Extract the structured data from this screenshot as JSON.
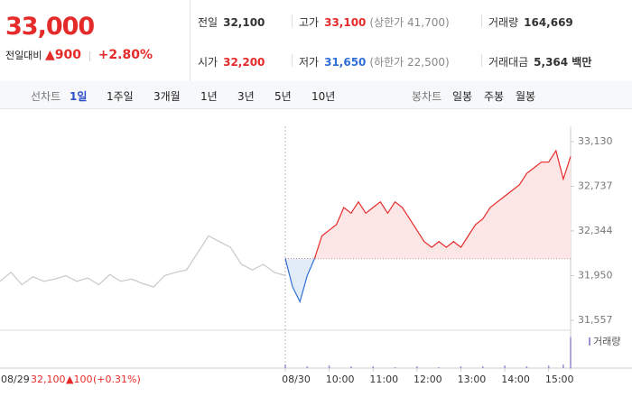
{
  "header": {
    "price": "33,000",
    "change_label": "전일대비",
    "change": "▲900",
    "change_pct": "+2.80%"
  },
  "stats": [
    {
      "label": "전일",
      "value": "32,100"
    },
    {
      "label": "고가",
      "value": "33,100",
      "extra": "(상한가 41,700)"
    },
    {
      "label": "거래량",
      "value": "164,669"
    },
    {
      "label": "시가",
      "value": "32,200"
    },
    {
      "label": "저가",
      "value": "31,650",
      "extra": "(하한가 22,500)"
    },
    {
      "label": "거래대금",
      "value": "5,364 백만"
    }
  ],
  "toolbar": {
    "line_label": "선차트",
    "line_items": [
      "1일",
      "1주일",
      "3개월",
      "1년",
      "3년",
      "5년",
      "10년"
    ],
    "candle_label": "봉차트",
    "candle_items": [
      "일봉",
      "주봉",
      "월봉"
    ]
  },
  "footer": {
    "date": "08/29",
    "price": "32,100",
    "change": "▲100",
    "pct": "(+0.31%)"
  },
  "chart_data": {
    "type": "line",
    "xlim": [
      0,
      780
    ],
    "xticks": [
      {
        "value": 390,
        "label": "08/30"
      },
      {
        "value": 450,
        "label": "10:00"
      },
      {
        "value": 510,
        "label": "11:00"
      },
      {
        "value": 570,
        "label": "12:00"
      },
      {
        "value": 630,
        "label": "13:00"
      },
      {
        "value": 690,
        "label": "14:00"
      },
      {
        "value": 750,
        "label": "15:00"
      }
    ],
    "ylim": [
      31557,
      33130
    ],
    "yticks": [
      {
        "value": 31557,
        "label": "31,557"
      },
      {
        "value": 31950,
        "label": "31,950"
      },
      {
        "value": 32344,
        "label": "32,344"
      },
      {
        "value": 32737,
        "label": "32,737"
      },
      {
        "value": 33130,
        "label": "33,130"
      }
    ],
    "baseline": 32100,
    "series": [
      {
        "color": "#c8c8c8",
        "x": [
          0,
          15,
          30,
          45,
          60,
          75,
          90,
          105,
          120,
          135,
          150,
          165,
          180,
          195,
          210,
          225,
          240,
          255,
          270,
          285,
          300,
          315,
          330,
          345,
          360,
          375,
          390
        ],
        "values": [
          31900,
          31980,
          31870,
          31940,
          31900,
          31920,
          31950,
          31900,
          31930,
          31870,
          31960,
          31900,
          31920,
          31880,
          31850,
          31950,
          31980,
          32000,
          32150,
          32300,
          32250,
          32200,
          32050,
          32000,
          32050,
          31980,
          31950
        ]
      },
      {
        "color": "#e52a2a",
        "color_below": "#2f6fd6",
        "fill": "#fde6e6",
        "fill_below": "#e2ebf8",
        "x": [
          390,
          400,
          410,
          420,
          430,
          440,
          450,
          460,
          470,
          480,
          490,
          500,
          510,
          520,
          530,
          540,
          550,
          560,
          570,
          580,
          590,
          600,
          610,
          620,
          630,
          640,
          650,
          660,
          670,
          680,
          690,
          700,
          710,
          720,
          730,
          740,
          750,
          760,
          770,
          780
        ],
        "values": [
          32100,
          31850,
          31720,
          31950,
          32100,
          32300,
          32350,
          32400,
          32550,
          32500,
          32600,
          32500,
          32550,
          32600,
          32500,
          32600,
          32550,
          32450,
          32350,
          32250,
          32200,
          32250,
          32200,
          32250,
          32200,
          32300,
          32400,
          32450,
          32550,
          32600,
          32650,
          32700,
          32750,
          32850,
          32900,
          32950,
          32950,
          33050,
          32800,
          33000
        ]
      }
    ],
    "volume": {
      "name": "거래량",
      "color": "#9b8fd0",
      "vlim": [
        0,
        40
      ],
      "x": [
        390,
        420,
        450,
        480,
        510,
        540,
        570,
        600,
        630,
        660,
        690,
        720,
        750,
        770,
        780
      ],
      "values": [
        4,
        2,
        3,
        2,
        2,
        1,
        2,
        1,
        2,
        2,
        3,
        2,
        3,
        4,
        36
      ]
    }
  }
}
